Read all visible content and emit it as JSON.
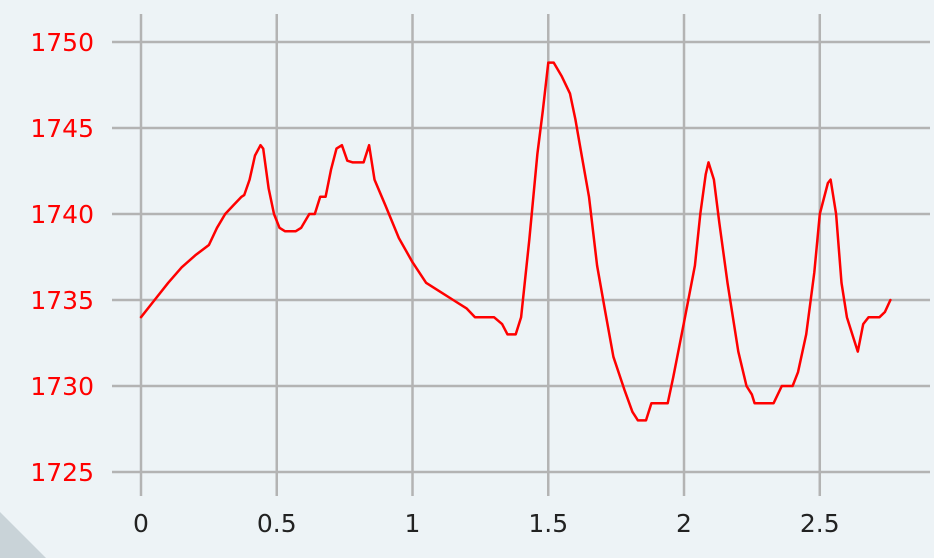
{
  "chart_data": {
    "type": "line",
    "title": "",
    "xlabel": "",
    "ylabel": "",
    "xlim": [
      0,
      2.8
    ],
    "ylim": [
      1725,
      1750
    ],
    "grid": true,
    "colors": {
      "line": "#ff0000",
      "grid": "#b3b3b3",
      "ytick": "#ff0000",
      "xtick": "#222222",
      "background": "#edf3f6"
    },
    "x_ticks": [
      {
        "value": 0,
        "label": "0"
      },
      {
        "value": 0.5,
        "label": "0.5"
      },
      {
        "value": 1,
        "label": "1"
      },
      {
        "value": 1.5,
        "label": "1.5"
      },
      {
        "value": 2,
        "label": "2"
      },
      {
        "value": 2.5,
        "label": "2.5"
      }
    ],
    "y_ticks": [
      {
        "value": 1725,
        "label": "1725"
      },
      {
        "value": 1730,
        "label": "1730"
      },
      {
        "value": 1735,
        "label": "1735"
      },
      {
        "value": 1740,
        "label": "1740"
      },
      {
        "value": 1745,
        "label": "1745"
      },
      {
        "value": 1750,
        "label": "1750"
      }
    ],
    "series": [
      {
        "points": [
          [
            0.0,
            1734.0
          ],
          [
            0.05,
            1735.0
          ],
          [
            0.1,
            1736.0
          ],
          [
            0.15,
            1736.9
          ],
          [
            0.2,
            1737.6
          ],
          [
            0.25,
            1738.2
          ],
          [
            0.28,
            1739.2
          ],
          [
            0.31,
            1740.0
          ],
          [
            0.34,
            1740.5
          ],
          [
            0.37,
            1741.0
          ],
          [
            0.38,
            1741.1
          ],
          [
            0.4,
            1742.0
          ],
          [
            0.42,
            1743.4
          ],
          [
            0.44,
            1744.0
          ],
          [
            0.45,
            1743.8
          ],
          [
            0.47,
            1741.5
          ],
          [
            0.49,
            1740.0
          ],
          [
            0.51,
            1739.2
          ],
          [
            0.53,
            1739.0
          ],
          [
            0.57,
            1739.0
          ],
          [
            0.59,
            1739.2
          ],
          [
            0.62,
            1740.0
          ],
          [
            0.64,
            1740.0
          ],
          [
            0.66,
            1741.0
          ],
          [
            0.68,
            1741.0
          ],
          [
            0.7,
            1742.6
          ],
          [
            0.72,
            1743.8
          ],
          [
            0.74,
            1744.0
          ],
          [
            0.76,
            1743.1
          ],
          [
            0.78,
            1743.0
          ],
          [
            0.82,
            1743.0
          ],
          [
            0.84,
            1744.0
          ],
          [
            0.86,
            1742.0
          ],
          [
            0.9,
            1740.5
          ],
          [
            0.95,
            1738.6
          ],
          [
            1.0,
            1737.2
          ],
          [
            1.05,
            1736.0
          ],
          [
            1.1,
            1735.5
          ],
          [
            1.15,
            1735.0
          ],
          [
            1.2,
            1734.5
          ],
          [
            1.23,
            1734.0
          ],
          [
            1.3,
            1734.0
          ],
          [
            1.33,
            1733.6
          ],
          [
            1.35,
            1733.0
          ],
          [
            1.38,
            1733.0
          ],
          [
            1.4,
            1734.0
          ],
          [
            1.43,
            1738.5
          ],
          [
            1.46,
            1743.5
          ],
          [
            1.48,
            1746.0
          ],
          [
            1.5,
            1748.8
          ],
          [
            1.52,
            1748.8
          ],
          [
            1.55,
            1748.0
          ],
          [
            1.58,
            1747.0
          ],
          [
            1.6,
            1745.5
          ],
          [
            1.62,
            1743.7
          ],
          [
            1.65,
            1741.0
          ],
          [
            1.68,
            1737.0
          ],
          [
            1.71,
            1734.3
          ],
          [
            1.74,
            1731.7
          ],
          [
            1.78,
            1729.8
          ],
          [
            1.81,
            1728.5
          ],
          [
            1.83,
            1728.0
          ],
          [
            1.86,
            1728.0
          ],
          [
            1.88,
            1729.0
          ],
          [
            1.9,
            1729.0
          ],
          [
            1.94,
            1729.0
          ],
          [
            1.96,
            1730.5
          ],
          [
            2.0,
            1733.7
          ],
          [
            2.04,
            1737.0
          ],
          [
            2.06,
            1740.0
          ],
          [
            2.08,
            1742.3
          ],
          [
            2.09,
            1743.0
          ],
          [
            2.11,
            1742.0
          ],
          [
            2.13,
            1739.5
          ],
          [
            2.16,
            1736.0
          ],
          [
            2.2,
            1732.0
          ],
          [
            2.23,
            1730.0
          ],
          [
            2.25,
            1729.5
          ],
          [
            2.26,
            1729.0
          ],
          [
            2.33,
            1729.0
          ],
          [
            2.36,
            1730.0
          ],
          [
            2.4,
            1730.0
          ],
          [
            2.42,
            1730.8
          ],
          [
            2.45,
            1733.0
          ],
          [
            2.48,
            1736.6
          ],
          [
            2.5,
            1740.0
          ],
          [
            2.53,
            1741.8
          ],
          [
            2.54,
            1742.0
          ],
          [
            2.56,
            1740.0
          ],
          [
            2.58,
            1736.0
          ],
          [
            2.6,
            1734.0
          ],
          [
            2.62,
            1733.0
          ],
          [
            2.64,
            1732.0
          ],
          [
            2.66,
            1733.6
          ],
          [
            2.68,
            1734.0
          ],
          [
            2.72,
            1734.0
          ],
          [
            2.74,
            1734.3
          ],
          [
            2.76,
            1735.0
          ]
        ]
      }
    ]
  }
}
